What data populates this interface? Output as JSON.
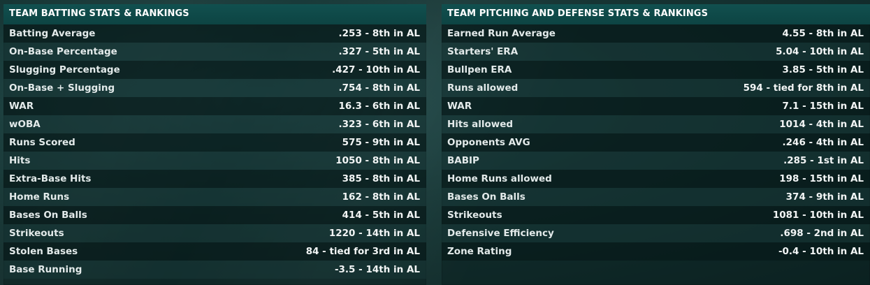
{
  "batting": {
    "title": "TEAM BATTING STATS & RANKINGS",
    "rows": [
      {
        "label": "Batting Average",
        "value": ".253 - 8th in AL"
      },
      {
        "label": "On-Base Percentage",
        "value": ".327 - 5th in AL"
      },
      {
        "label": "Slugging Percentage",
        "value": ".427 - 10th in AL"
      },
      {
        "label": "On-Base + Slugging",
        "value": ".754 - 8th in AL"
      },
      {
        "label": "WAR",
        "value": "16.3 - 6th in AL"
      },
      {
        "label": "wOBA",
        "value": ".323 - 6th in AL"
      },
      {
        "label": "Runs Scored",
        "value": "575 - 9th in AL"
      },
      {
        "label": "Hits",
        "value": "1050 - 8th in AL"
      },
      {
        "label": "Extra-Base Hits",
        "value": "385 - 8th in AL"
      },
      {
        "label": "Home Runs",
        "value": "162 - 8th in AL"
      },
      {
        "label": "Bases On Balls",
        "value": "414 - 5th in AL"
      },
      {
        "label": "Strikeouts",
        "value": "1220 - 14th in AL"
      },
      {
        "label": "Stolen Bases",
        "value": "84 - tied for 3rd in AL"
      },
      {
        "label": "Base Running",
        "value": "-3.5 - 14th in AL"
      }
    ]
  },
  "pitching": {
    "title": "TEAM PITCHING AND DEFENSE STATS & RANKINGS",
    "rows": [
      {
        "label": "Earned Run Average",
        "value": "4.55 - 8th in AL"
      },
      {
        "label": "Starters' ERA",
        "value": "5.04 - 10th in AL"
      },
      {
        "label": "Bullpen ERA",
        "value": "3.85 - 5th in AL"
      },
      {
        "label": "Runs allowed",
        "value": "594 - tied for 8th in AL"
      },
      {
        "label": "WAR",
        "value": "7.1 - 15th in AL"
      },
      {
        "label": "Hits allowed",
        "value": "1014 - 4th in AL"
      },
      {
        "label": "Opponents AVG",
        "value": ".246 - 4th in AL"
      },
      {
        "label": "BABIP",
        "value": ".285 - 1st in AL"
      },
      {
        "label": "Home Runs allowed",
        "value": "198 - 15th in AL"
      },
      {
        "label": "Bases On Balls",
        "value": "374 - 9th in AL"
      },
      {
        "label": "Strikeouts",
        "value": "1081 - 10th in AL"
      },
      {
        "label": "Defensive Efficiency",
        "value": ".698 - 2nd in AL"
      },
      {
        "label": "Zone Rating",
        "value": "-0.4 - 10th in AL"
      }
    ]
  }
}
